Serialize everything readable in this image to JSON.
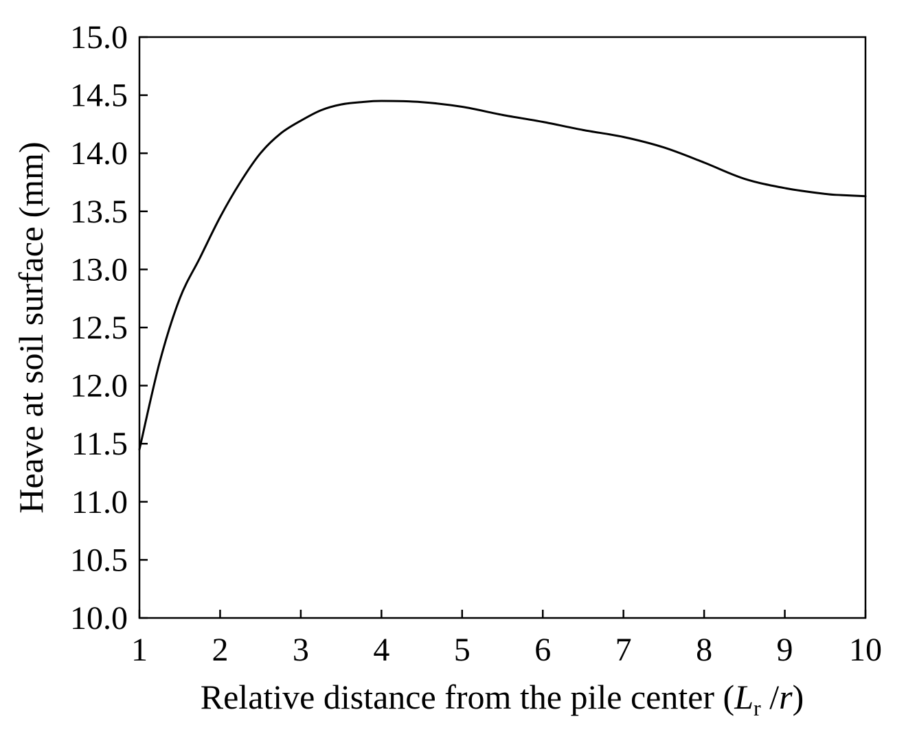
{
  "chart_data": {
    "type": "line",
    "title": "",
    "xlabel": "Relative distance from the pile center (",
    "xlabel_parts": {
      "main": "Relative distance from the pile center (",
      "italic_L": "L",
      "subscript": "r",
      "sep": " /",
      "italic_r": "r",
      "close": ")"
    },
    "ylabel": "Heave at soil surface (mm)",
    "xlim": [
      1,
      10
    ],
    "ylim": [
      10.0,
      15.0
    ],
    "xticks": [
      1,
      2,
      3,
      4,
      5,
      6,
      7,
      8,
      9,
      10
    ],
    "yticks": [
      "10.0",
      "10.5",
      "11.0",
      "11.5",
      "12.0",
      "12.5",
      "13.0",
      "13.5",
      "14.0",
      "14.5",
      "15.0"
    ],
    "grid": false,
    "legend": "none",
    "series": [
      {
        "color": "#000000",
        "x": [
          1.0,
          1.25,
          1.5,
          1.75,
          2.0,
          2.25,
          2.5,
          2.75,
          3.0,
          3.25,
          3.5,
          3.75,
          4.0,
          4.5,
          5.0,
          5.5,
          6.0,
          6.5,
          7.0,
          7.5,
          8.0,
          8.5,
          9.0,
          9.5,
          9.7,
          10.0
        ],
        "y": [
          11.45,
          12.2,
          12.75,
          13.1,
          13.45,
          13.75,
          14.0,
          14.17,
          14.28,
          14.37,
          14.42,
          14.44,
          14.45,
          14.44,
          14.4,
          14.33,
          14.27,
          14.2,
          14.14,
          14.05,
          13.92,
          13.78,
          13.7,
          13.65,
          13.64,
          13.63
        ]
      }
    ]
  }
}
